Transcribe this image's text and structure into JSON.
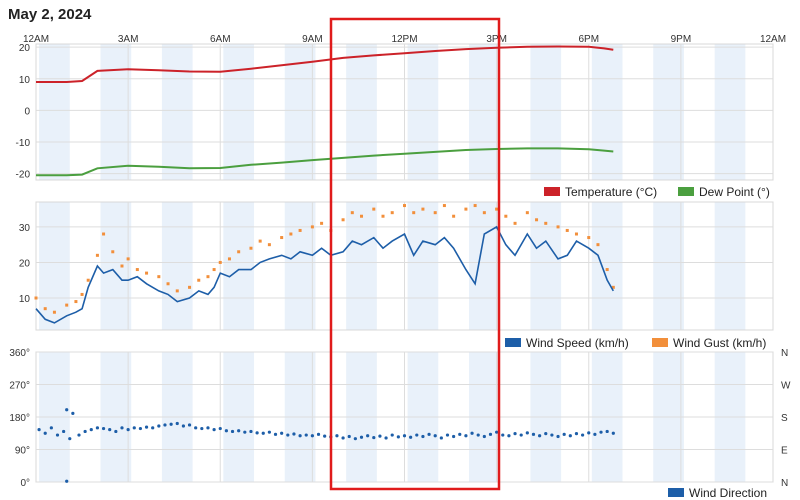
{
  "page_title": "May 2, 2024",
  "x_tick_labels": [
    "12AM",
    "3AM",
    "6AM",
    "9AM",
    "12PM",
    "3PM",
    "6PM",
    "9PM",
    "12AM"
  ],
  "colors": {
    "temperature": "#cc2229",
    "dew_point": "#4b9f3f",
    "wind_speed": "#1d5ea8",
    "wind_gust": "#f28f3b",
    "wind_direction": "#1d5ea8",
    "band": "#e9f1fa",
    "highlight_box": "#e01b1b"
  },
  "chart_data": [
    {
      "type": "line",
      "x_unit": "hours since midnight",
      "xlim": [
        0,
        24
      ],
      "ylim": [
        -22,
        21
      ],
      "y_ticks": [
        20,
        10,
        0,
        -10,
        -20
      ],
      "series": [
        {
          "name": "Temperature (°C)",
          "color": "#cc2229",
          "points": [
            [
              0,
              9
            ],
            [
              1,
              9
            ],
            [
              1.5,
              9.3
            ],
            [
              2,
              12.5
            ],
            [
              3,
              13
            ],
            [
              4,
              12.7
            ],
            [
              5,
              12.3
            ],
            [
              6,
              12.2
            ],
            [
              7,
              13.2
            ],
            [
              8,
              14.3
            ],
            [
              9,
              15.4
            ],
            [
              10,
              16.6
            ],
            [
              11,
              17.4
            ],
            [
              12,
              18.1
            ],
            [
              13,
              18.8
            ],
            [
              14,
              19.4
            ],
            [
              15,
              19.8
            ],
            [
              16,
              20.1
            ],
            [
              17,
              20.2
            ],
            [
              18,
              20.1
            ],
            [
              18.5,
              19.6
            ],
            [
              18.8,
              19.2
            ]
          ]
        },
        {
          "name": "Dew Point (°)",
          "color": "#4b9f3f",
          "points": [
            [
              0,
              -20.5
            ],
            [
              1,
              -20.5
            ],
            [
              1.5,
              -20.3
            ],
            [
              2,
              -18.3
            ],
            [
              3,
              -17.5
            ],
            [
              4,
              -17.8
            ],
            [
              5,
              -18.3
            ],
            [
              6,
              -18.2
            ],
            [
              7,
              -17.2
            ],
            [
              8,
              -16.5
            ],
            [
              9,
              -15.7
            ],
            [
              10,
              -15
            ],
            [
              11,
              -14.3
            ],
            [
              12,
              -13.7
            ],
            [
              13,
              -13.1
            ],
            [
              14,
              -12.5
            ],
            [
              15,
              -12.2
            ],
            [
              16,
              -12
            ],
            [
              17,
              -12
            ],
            [
              18,
              -12.3
            ],
            [
              18.5,
              -12.7
            ],
            [
              18.8,
              -13
            ]
          ]
        }
      ]
    },
    {
      "type": "line",
      "x_unit": "hours since midnight",
      "xlim": [
        0,
        24
      ],
      "ylim": [
        1,
        37
      ],
      "y_ticks": [
        30,
        20,
        10
      ],
      "series": [
        {
          "name": "Wind Speed (km/h)",
          "color": "#1d5ea8",
          "points": [
            [
              0,
              7
            ],
            [
              0.3,
              4
            ],
            [
              0.6,
              3
            ],
            [
              1,
              5
            ],
            [
              1.3,
              6
            ],
            [
              1.5,
              7
            ],
            [
              1.7,
              13
            ],
            [
              2,
              19
            ],
            [
              2.2,
              17
            ],
            [
              2.5,
              18
            ],
            [
              2.8,
              15
            ],
            [
              3,
              15
            ],
            [
              3.3,
              16
            ],
            [
              3.6,
              14
            ],
            [
              4,
              12
            ],
            [
              4.3,
              11
            ],
            [
              4.6,
              9
            ],
            [
              5,
              10
            ],
            [
              5.3,
              12
            ],
            [
              5.6,
              11
            ],
            [
              5.8,
              13
            ],
            [
              6,
              17
            ],
            [
              6.3,
              16
            ],
            [
              6.6,
              18
            ],
            [
              7,
              18
            ],
            [
              7.3,
              20
            ],
            [
              7.6,
              21
            ],
            [
              8,
              22
            ],
            [
              8.3,
              21
            ],
            [
              8.6,
              23
            ],
            [
              9,
              22
            ],
            [
              9.3,
              24
            ],
            [
              9.6,
              22
            ],
            [
              10,
              23
            ],
            [
              10.3,
              26
            ],
            [
              10.6,
              25
            ],
            [
              11,
              27
            ],
            [
              11.3,
              24
            ],
            [
              11.6,
              26
            ],
            [
              12,
              28
            ],
            [
              12.3,
              22
            ],
            [
              12.6,
              26
            ],
            [
              13,
              25
            ],
            [
              13.3,
              27
            ],
            [
              13.6,
              24
            ],
            [
              14,
              18
            ],
            [
              14.3,
              14
            ],
            [
              14.6,
              28
            ],
            [
              15,
              30
            ],
            [
              15.3,
              25
            ],
            [
              15.6,
              22
            ],
            [
              16,
              28
            ],
            [
              16.3,
              24
            ],
            [
              16.6,
              26
            ],
            [
              17,
              21
            ],
            [
              17.3,
              22
            ],
            [
              17.6,
              26
            ],
            [
              18,
              24
            ],
            [
              18.3,
              22
            ],
            [
              18.6,
              15
            ],
            [
              18.8,
              12
            ]
          ]
        },
        {
          "name": "Wind Gust (km/h)",
          "color": "#f28f3b",
          "points": [
            [
              0,
              10
            ],
            [
              0.3,
              7
            ],
            [
              0.6,
              6
            ],
            [
              1,
              8
            ],
            [
              1.3,
              9
            ],
            [
              1.5,
              11
            ],
            [
              1.7,
              15
            ],
            [
              2,
              22
            ],
            [
              2.2,
              28
            ],
            [
              2.5,
              23
            ],
            [
              2.8,
              19
            ],
            [
              3,
              21
            ],
            [
              3.3,
              18
            ],
            [
              3.6,
              17
            ],
            [
              4,
              16
            ],
            [
              4.3,
              14
            ],
            [
              4.6,
              12
            ],
            [
              5,
              13
            ],
            [
              5.3,
              15
            ],
            [
              5.6,
              16
            ],
            [
              5.8,
              18
            ],
            [
              6,
              20
            ],
            [
              6.3,
              21
            ],
            [
              6.6,
              23
            ],
            [
              7,
              24
            ],
            [
              7.3,
              26
            ],
            [
              7.6,
              25
            ],
            [
              8,
              27
            ],
            [
              8.3,
              28
            ],
            [
              8.6,
              29
            ],
            [
              9,
              30
            ],
            [
              9.3,
              31
            ],
            [
              9.6,
              29
            ],
            [
              10,
              32
            ],
            [
              10.3,
              34
            ],
            [
              10.6,
              33
            ],
            [
              11,
              35
            ],
            [
              11.3,
              33
            ],
            [
              11.6,
              34
            ],
            [
              12,
              36
            ],
            [
              12.3,
              34
            ],
            [
              12.6,
              35
            ],
            [
              13,
              34
            ],
            [
              13.3,
              36
            ],
            [
              13.6,
              33
            ],
            [
              14,
              35
            ],
            [
              14.3,
              36
            ],
            [
              14.6,
              34
            ],
            [
              15,
              35
            ],
            [
              15.3,
              33
            ],
            [
              15.6,
              31
            ],
            [
              16,
              34
            ],
            [
              16.3,
              32
            ],
            [
              16.6,
              31
            ],
            [
              17,
              30
            ],
            [
              17.3,
              29
            ],
            [
              17.6,
              28
            ],
            [
              18,
              27
            ],
            [
              18.3,
              25
            ],
            [
              18.6,
              18
            ],
            [
              18.8,
              13
            ]
          ]
        }
      ]
    },
    {
      "type": "scatter",
      "x_unit": "hours since midnight",
      "xlim": [
        0,
        24
      ],
      "ylim": [
        0,
        360
      ],
      "y_ticks": [
        "360°",
        "270°",
        "180°",
        "90°",
        "0°"
      ],
      "right_ticks": [
        "N",
        "W",
        "S",
        "E",
        "N"
      ],
      "series": [
        {
          "name": "Wind Direction",
          "color": "#1d5ea8",
          "points": [
            [
              0.1,
              145
            ],
            [
              0.3,
              135
            ],
            [
              0.5,
              150
            ],
            [
              0.7,
              130
            ],
            [
              0.9,
              140
            ],
            [
              1.0,
              200
            ],
            [
              1.1,
              120
            ],
            [
              1.2,
              190
            ],
            [
              1.0,
              2
            ],
            [
              1.4,
              130
            ],
            [
              1.6,
              140
            ],
            [
              1.8,
              145
            ],
            [
              2.0,
              150
            ],
            [
              2.2,
              148
            ],
            [
              2.4,
              145
            ],
            [
              2.6,
              140
            ],
            [
              2.8,
              150
            ],
            [
              3.0,
              145
            ],
            [
              3.2,
              150
            ],
            [
              3.4,
              148
            ],
            [
              3.6,
              152
            ],
            [
              3.8,
              150
            ],
            [
              4.0,
              155
            ],
            [
              4.2,
              158
            ],
            [
              4.4,
              160
            ],
            [
              4.6,
              162
            ],
            [
              4.8,
              155
            ],
            [
              5.0,
              158
            ],
            [
              5.2,
              150
            ],
            [
              5.4,
              148
            ],
            [
              5.6,
              150
            ],
            [
              5.8,
              145
            ],
            [
              6.0,
              148
            ],
            [
              6.2,
              142
            ],
            [
              6.4,
              140
            ],
            [
              6.6,
              142
            ],
            [
              6.8,
              138
            ],
            [
              7.0,
              140
            ],
            [
              7.2,
              136
            ],
            [
              7.4,
              135
            ],
            [
              7.6,
              138
            ],
            [
              7.8,
              132
            ],
            [
              8.0,
              135
            ],
            [
              8.2,
              130
            ],
            [
              8.4,
              133
            ],
            [
              8.6,
              128
            ],
            [
              8.8,
              130
            ],
            [
              9.0,
              128
            ],
            [
              9.2,
              132
            ],
            [
              9.4,
              127
            ],
            [
              9.6,
              125
            ],
            [
              9.8,
              128
            ],
            [
              10.0,
              122
            ],
            [
              10.2,
              126
            ],
            [
              10.4,
              120
            ],
            [
              10.6,
              124
            ],
            [
              10.8,
              128
            ],
            [
              11.0,
              123
            ],
            [
              11.2,
              127
            ],
            [
              11.4,
              122
            ],
            [
              11.6,
              130
            ],
            [
              11.8,
              125
            ],
            [
              12.0,
              128
            ],
            [
              12.2,
              124
            ],
            [
              12.4,
              130
            ],
            [
              12.6,
              126
            ],
            [
              12.8,
              132
            ],
            [
              13.0,
              128
            ],
            [
              13.2,
              122
            ],
            [
              13.4,
              130
            ],
            [
              13.6,
              126
            ],
            [
              13.8,
              132
            ],
            [
              14.0,
              128
            ],
            [
              14.2,
              135
            ],
            [
              14.4,
              130
            ],
            [
              14.6,
              126
            ],
            [
              14.8,
              132
            ],
            [
              15.0,
              138
            ],
            [
              15.2,
              130
            ],
            [
              15.4,
              128
            ],
            [
              15.6,
              134
            ],
            [
              15.8,
              130
            ],
            [
              16.0,
              136
            ],
            [
              16.2,
              132
            ],
            [
              16.4,
              128
            ],
            [
              16.6,
              134
            ],
            [
              16.8,
              130
            ],
            [
              17.0,
              126
            ],
            [
              17.2,
              132
            ],
            [
              17.4,
              128
            ],
            [
              17.6,
              134
            ],
            [
              17.8,
              130
            ],
            [
              18.0,
              136
            ],
            [
              18.2,
              132
            ],
            [
              18.4,
              138
            ],
            [
              18.6,
              140
            ],
            [
              18.8,
              135
            ]
          ]
        }
      ]
    }
  ]
}
